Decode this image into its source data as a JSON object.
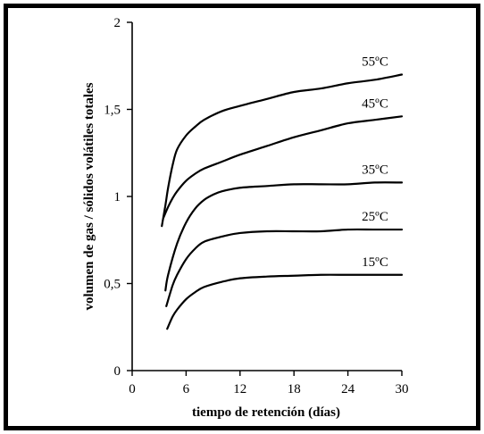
{
  "chart_data": {
    "type": "line",
    "title": "",
    "xlabel": "tiempo de retención (días)",
    "ylabel": "volumen de gas / sólidos volátiles totales",
    "xlim": [
      0,
      30
    ],
    "ylim": [
      0,
      2
    ],
    "xticks": [
      0,
      6,
      12,
      18,
      24,
      30
    ],
    "yticks": [
      0,
      0.5,
      1,
      1.5,
      2
    ],
    "xtick_labels": [
      "0",
      "6",
      "12",
      "18",
      "24",
      "30"
    ],
    "ytick_labels": [
      "0",
      "0,5",
      "1",
      "1,5",
      "2"
    ],
    "grid": false,
    "legend": "inline labels at curve ends",
    "series": [
      {
        "name": "55ºC",
        "x": [
          3.3,
          3.7,
          4,
          4.5,
          5,
          6,
          7,
          8,
          10,
          12,
          15,
          18,
          21,
          24,
          27,
          30
        ],
        "y": [
          0.83,
          0.95,
          1.05,
          1.18,
          1.27,
          1.35,
          1.4,
          1.44,
          1.49,
          1.52,
          1.56,
          1.6,
          1.62,
          1.65,
          1.67,
          1.7
        ]
      },
      {
        "name": "45ºC",
        "x": [
          3.5,
          4,
          4.5,
          5,
          6,
          7,
          8,
          10,
          12,
          15,
          18,
          21,
          24,
          27,
          30
        ],
        "y": [
          0.88,
          0.94,
          0.99,
          1.03,
          1.09,
          1.13,
          1.16,
          1.2,
          1.24,
          1.29,
          1.34,
          1.38,
          1.42,
          1.44,
          1.46
        ]
      },
      {
        "name": "35ºC",
        "x": [
          3.7,
          4,
          5,
          6,
          7,
          8,
          9,
          10,
          12,
          15,
          18,
          21,
          24,
          27,
          30
        ],
        "y": [
          0.46,
          0.55,
          0.73,
          0.85,
          0.93,
          0.98,
          1.01,
          1.03,
          1.05,
          1.06,
          1.07,
          1.07,
          1.07,
          1.08,
          1.08
        ]
      },
      {
        "name": "25ºC",
        "x": [
          3.8,
          4.5,
          5,
          6,
          7,
          8,
          10,
          12,
          15,
          18,
          21,
          24,
          27,
          30
        ],
        "y": [
          0.37,
          0.49,
          0.55,
          0.64,
          0.7,
          0.74,
          0.77,
          0.79,
          0.8,
          0.8,
          0.8,
          0.81,
          0.81,
          0.81
        ]
      },
      {
        "name": "15ºC",
        "x": [
          3.9,
          4.5,
          5,
          6,
          7,
          8,
          10,
          12,
          15,
          18,
          21,
          24,
          27,
          30
        ],
        "y": [
          0.24,
          0.31,
          0.35,
          0.41,
          0.45,
          0.48,
          0.51,
          0.53,
          0.54,
          0.545,
          0.55,
          0.55,
          0.55,
          0.55
        ]
      }
    ]
  }
}
